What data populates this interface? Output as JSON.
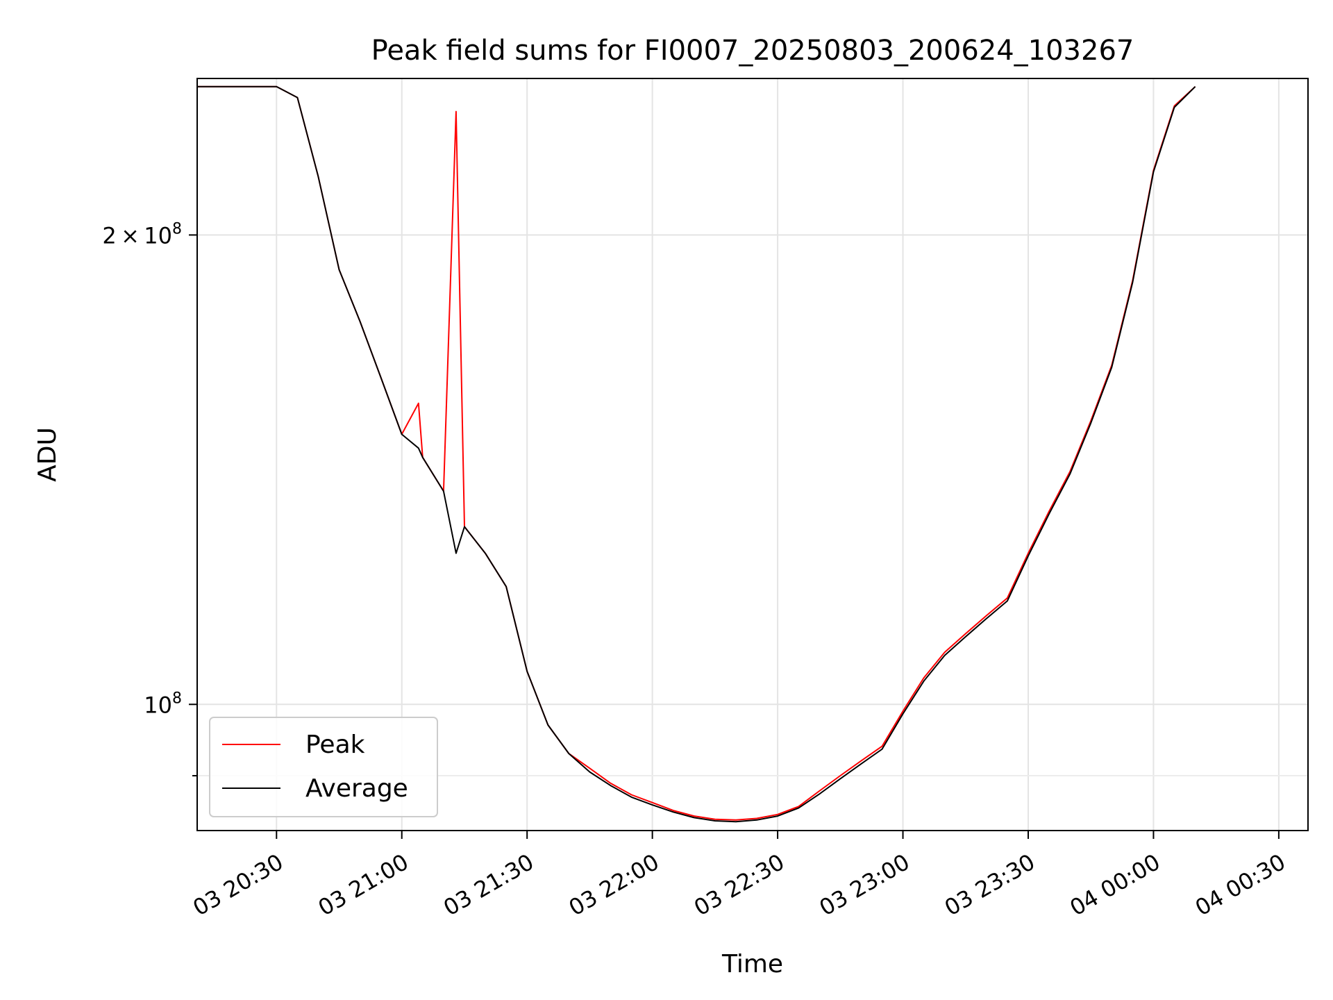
{
  "chart_data": {
    "type": "line",
    "title": "Peak field sums for FI0007_20250803_200624_103267",
    "xlabel": "Time",
    "ylabel": "ADU",
    "y_scale": "log",
    "ylim": [
      83000000,
      252000000
    ],
    "xlim": [
      "2025-08-03 20:11",
      "2025-08-04 00:37"
    ],
    "x_ticks": [
      "03 20:30",
      "03 21:00",
      "03 21:30",
      "03 22:00",
      "03 22:30",
      "03 23:00",
      "03 23:30",
      "04 00:00",
      "04 00:30"
    ],
    "x_tick_values": [
      "2025-08-03 20:30",
      "2025-08-03 21:00",
      "2025-08-03 21:30",
      "2025-08-03 22:00",
      "2025-08-03 22:30",
      "2025-08-03 23:00",
      "2025-08-03 23:30",
      "2025-08-04 00:00",
      "2025-08-04 00:30"
    ],
    "y_major_ticks": [
      {
        "value": 100000000,
        "mant": "",
        "exp": "8"
      },
      {
        "value": 200000000,
        "mant": "2",
        "exp": "8"
      }
    ],
    "y_minor_ticks": [
      90000000
    ],
    "grid": true,
    "legend_position": "lower-left",
    "x": [
      "2025-08-03 20:11",
      "2025-08-03 20:30",
      "2025-08-03 20:35",
      "2025-08-03 20:40",
      "2025-08-03 20:45",
      "2025-08-03 20:50",
      "2025-08-03 20:55",
      "2025-08-03 21:00",
      "2025-08-03 21:04",
      "2025-08-03 21:05",
      "2025-08-03 21:10",
      "2025-08-03 21:13",
      "2025-08-03 21:15",
      "2025-08-03 21:20",
      "2025-08-03 21:25",
      "2025-08-03 21:30",
      "2025-08-03 21:35",
      "2025-08-03 21:40",
      "2025-08-03 21:45",
      "2025-08-03 21:50",
      "2025-08-03 21:55",
      "2025-08-03 22:00",
      "2025-08-03 22:05",
      "2025-08-03 22:10",
      "2025-08-03 22:15",
      "2025-08-03 22:20",
      "2025-08-03 22:25",
      "2025-08-03 22:30",
      "2025-08-03 22:35",
      "2025-08-03 22:40",
      "2025-08-03 22:45",
      "2025-08-03 22:50",
      "2025-08-03 22:55",
      "2025-08-03 23:00",
      "2025-08-03 23:05",
      "2025-08-03 23:10",
      "2025-08-03 23:15",
      "2025-08-03 23:20",
      "2025-08-03 23:25",
      "2025-08-03 23:30",
      "2025-08-03 23:35",
      "2025-08-03 23:40",
      "2025-08-03 23:45",
      "2025-08-03 23:50",
      "2025-08-03 23:55",
      "2025-08-04 00:00",
      "2025-08-04 00:05",
      "2025-08-04 00:10"
    ],
    "series": [
      {
        "name": "Peak",
        "color": "#ff0000",
        "values": [
          249000000,
          249000000,
          245000000,
          218000000,
          190000000,
          176000000,
          162000000,
          149000000,
          156000000,
          144000000,
          137000000,
          240000000,
          130000000,
          125000000,
          119000000,
          105000000,
          97000000,
          93000000,
          91000000,
          89000000,
          87500000,
          86500000,
          85500000,
          84800000,
          84400000,
          84300000,
          84500000,
          85000000,
          86000000,
          88000000,
          90000000,
          92000000,
          94000000,
          99000000,
          104000000,
          108000000,
          111000000,
          114000000,
          117000000,
          125000000,
          133000000,
          141000000,
          152000000,
          165000000,
          187000000,
          220000000,
          242000000,
          249000000
        ]
      },
      {
        "name": "Average",
        "color": "#000000",
        "values": [
          249000000,
          249000000,
          245000000,
          218000000,
          190000000,
          176000000,
          162000000,
          149000000,
          146000000,
          144000000,
          137000000,
          125000000,
          130000000,
          125000000,
          119000000,
          105000000,
          97000000,
          93000000,
          90500000,
          88700000,
          87200000,
          86200000,
          85300000,
          84600000,
          84200000,
          84100000,
          84300000,
          84800000,
          85800000,
          87600000,
          89600000,
          91600000,
          93600000,
          98600000,
          103500000,
          107500000,
          110500000,
          113500000,
          116500000,
          124500000,
          132500000,
          140500000,
          151500000,
          164500000,
          186500000,
          219500000,
          241500000,
          249000000
        ]
      }
    ]
  }
}
